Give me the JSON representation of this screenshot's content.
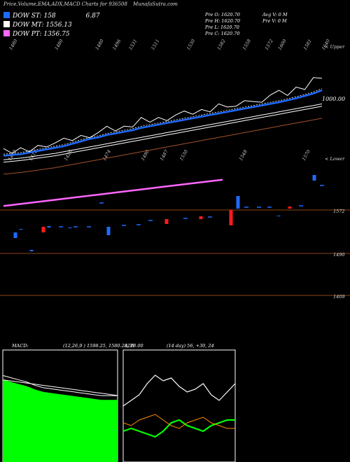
{
  "header": {
    "title": "Price,Volume,EMA,ADX,MACD Charts for 936508",
    "site": "MunafaSutra.com"
  },
  "legend": {
    "items": [
      {
        "label": "DOW ST:",
        "value": "158",
        "color": "#1e6bff"
      },
      {
        "label": "DOW MT:",
        "value": "1556.13",
        "color": "#ffffff"
      },
      {
        "label": "DOW PT:",
        "value": "1356.75",
        "color": "#ff66ff"
      }
    ],
    "extra": "6.87"
  },
  "ohlc": {
    "open": "Pre  O: 1620.70",
    "high": "Pre  H: 1620.70",
    "low": "Pre  L: 1620.70",
    "close": "Pre  C: 1620.70",
    "avg_vol": "Avg V: 0  M",
    "pre_vol": "Pre  V: 0  M"
  },
  "top_labels": [
    "1480",
    "1480",
    "1480",
    "1496",
    "1531",
    "1511",
    "1530",
    "1582",
    "1558",
    "1572",
    "1600",
    "1581",
    "1640"
  ],
  "mid_labels": [
    "1420",
    "1412",
    "1426",
    "1474",
    "1490",
    "1487",
    "1530",
    "1548",
    "1570"
  ],
  "right_labels": {
    "upper": "< Upper",
    "lower": "< Lower"
  },
  "price_level": "1000.00",
  "volume_levels": [
    "1572",
    "1490",
    "1409"
  ],
  "colors": {
    "bg": "#000000",
    "ema_blue": "#1e6bff",
    "ema_white": "#ffffff",
    "ema_pink": "#ff66ff",
    "brown": "#a0522d",
    "bull": "#1e6bff",
    "bear": "#ff1a1a",
    "macd_fill": "#00ff00",
    "adx_green": "#00ff00",
    "adx_orange": "#ff8c00"
  },
  "macd": {
    "label": "MACD:",
    "params": "(12,26,9 ) 1598.25,  1580.28,  18.00"
  },
  "adx": {
    "label": "ADX",
    "params": "(14 day) 56,  +30,  24"
  },
  "chart_data": [
    {
      "type": "line",
      "title": "Price,Volume,EMA,ADX,MACD Charts for 936508",
      "note": "price panel with EMA lines",
      "series": [
        {
          "name": "DOW ST",
          "values": [
            1416,
            1418,
            1420,
            1424,
            1428,
            1432,
            1436,
            1440,
            1446,
            1452,
            1458,
            1462,
            1468,
            1472,
            1476,
            1480,
            1486,
            1490,
            1494,
            1498,
            1502,
            1506,
            1510,
            1514,
            1518,
            1522,
            1526,
            1530,
            1534,
            1538,
            1542,
            1546,
            1550,
            1555,
            1560,
            1566,
            1572,
            1580
          ]
        },
        {
          "name": "DOW MT",
          "values": [
            1400,
            1402,
            1404,
            1407,
            1410,
            1413,
            1416,
            1420,
            1424,
            1428,
            1432,
            1436,
            1440,
            1444,
            1448,
            1452,
            1456,
            1460,
            1464,
            1468,
            1472,
            1476,
            1480,
            1484,
            1488,
            1492,
            1496,
            1500,
            1504,
            1508,
            1512,
            1516,
            1520,
            1524,
            1528,
            1532,
            1536,
            1540
          ]
        },
        {
          "name": "DOW PT",
          "values": [
            1290,
            1296,
            1302,
            1308,
            1314,
            1320,
            1326,
            1332,
            1338,
            1344,
            1350,
            1356
          ]
        }
      ]
    },
    {
      "type": "line",
      "title": "MACD",
      "series": [
        {
          "name": "MACD",
          "values": [
            36,
            34,
            32,
            30,
            27,
            25,
            24,
            23,
            22,
            21,
            20,
            19,
            18,
            18,
            18
          ]
        },
        {
          "name": "Signal",
          "values": [
            34,
            33,
            32,
            31,
            30,
            29,
            28,
            27,
            26,
            25,
            24,
            23,
            22,
            21,
            20
          ]
        }
      ]
    },
    {
      "type": "line",
      "title": "ADX",
      "series": [
        {
          "name": "ADX",
          "values": [
            40,
            44,
            48,
            56,
            62,
            58,
            60,
            54,
            50,
            52,
            56,
            48,
            44,
            50,
            56
          ]
        },
        {
          "name": "+DI",
          "values": [
            22,
            24,
            22,
            20,
            18,
            22,
            28,
            30,
            26,
            24,
            22,
            26,
            28,
            30,
            30
          ]
        },
        {
          "name": "-DI",
          "values": [
            28,
            26,
            30,
            32,
            34,
            30,
            26,
            24,
            28,
            30,
            32,
            28,
            26,
            24,
            24
          ]
        }
      ]
    }
  ]
}
